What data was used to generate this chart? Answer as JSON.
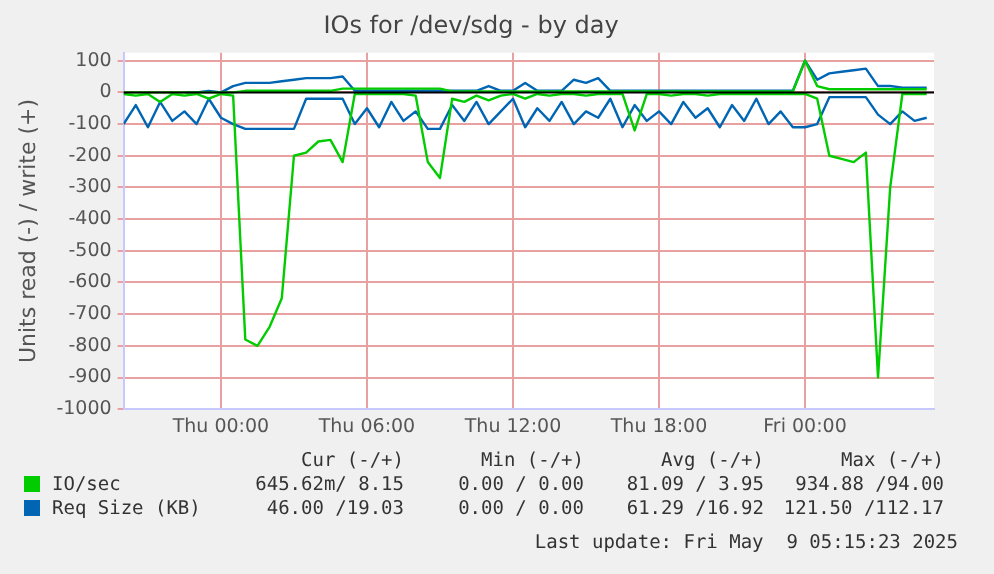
{
  "chart_data": {
    "type": "line",
    "title": "IOs for /dev/sdg - by day",
    "ylabel": "Units read (-) / write (+)",
    "x": [
      "2025-05-07T20:00",
      "2025-05-07T20:30",
      "2025-05-07T21:00",
      "2025-05-07T21:30",
      "2025-05-07T22:00",
      "2025-05-07T22:30",
      "2025-05-07T23:00",
      "2025-05-07T23:30",
      "2025-05-08T00:00",
      "2025-05-08T00:30",
      "2025-05-08T01:00",
      "2025-05-08T01:30",
      "2025-05-08T02:00",
      "2025-05-08T02:30",
      "2025-05-08T03:00",
      "2025-05-08T03:30",
      "2025-05-08T04:00",
      "2025-05-08T04:30",
      "2025-05-08T05:00",
      "2025-05-08T05:30",
      "2025-05-08T06:00",
      "2025-05-08T06:30",
      "2025-05-08T07:00",
      "2025-05-08T07:30",
      "2025-05-08T08:00",
      "2025-05-08T08:30",
      "2025-05-08T09:00",
      "2025-05-08T09:30",
      "2025-05-08T10:00",
      "2025-05-08T10:30",
      "2025-05-08T11:00",
      "2025-05-08T11:30",
      "2025-05-08T12:00",
      "2025-05-08T12:30",
      "2025-05-08T13:00",
      "2025-05-08T13:30",
      "2025-05-08T14:00",
      "2025-05-08T14:30",
      "2025-05-08T15:00",
      "2025-05-08T15:30",
      "2025-05-08T16:00",
      "2025-05-08T16:30",
      "2025-05-08T17:00",
      "2025-05-08T17:30",
      "2025-05-08T18:00",
      "2025-05-08T18:30",
      "2025-05-08T19:00",
      "2025-05-08T19:30",
      "2025-05-08T20:00",
      "2025-05-08T20:30",
      "2025-05-08T21:00",
      "2025-05-08T21:30",
      "2025-05-08T22:00",
      "2025-05-08T22:30",
      "2025-05-08T23:00",
      "2025-05-08T23:30",
      "2025-05-09T00:00",
      "2025-05-09T00:30",
      "2025-05-09T01:00",
      "2025-05-09T01:30",
      "2025-05-09T02:00",
      "2025-05-09T02:30",
      "2025-05-09T03:00",
      "2025-05-09T03:30",
      "2025-05-09T04:00",
      "2025-05-09T04:30",
      "2025-05-09T05:00"
    ],
    "series": [
      {
        "name": "IO/sec",
        "color": "#00cc00",
        "values": [
          -5,
          -10,
          -5,
          -30,
          -5,
          -10,
          -5,
          -20,
          -5,
          -10,
          -780,
          -800,
          -740,
          -650,
          -200,
          -190,
          -155,
          -150,
          -220,
          -5,
          -5,
          -5,
          -5,
          -5,
          -10,
          -220,
          -270,
          -20,
          -30,
          -10,
          -25,
          -10,
          -5,
          -20,
          -5,
          -10,
          -5,
          -5,
          -10,
          -5,
          -5,
          -5,
          -120,
          -5,
          -5,
          -10,
          -5,
          -5,
          -10,
          -5,
          -5,
          -5,
          -5,
          -5,
          -5,
          -5,
          -5,
          -20,
          -200,
          -210,
          -220,
          -190,
          -900,
          -300,
          -5,
          -5,
          -5
        ]
      },
      {
        "color": "#00cc00",
        "values": [
          0,
          0,
          0,
          0,
          0,
          0,
          0,
          0,
          0,
          0,
          5,
          5,
          5,
          5,
          5,
          5,
          5,
          5,
          12,
          12,
          12,
          12,
          12,
          12,
          12,
          12,
          12,
          3,
          3,
          3,
          3,
          3,
          3,
          3,
          3,
          3,
          3,
          3,
          3,
          3,
          3,
          3,
          3,
          3,
          3,
          3,
          3,
          3,
          3,
          3,
          3,
          3,
          3,
          3,
          3,
          3,
          100,
          20,
          10,
          10,
          10,
          10,
          10,
          10,
          10,
          10,
          10
        ]
      },
      {
        "name": "Req Size (KB)",
        "color": "#0066b3",
        "values": [
          -100,
          -40,
          -110,
          -30,
          -90,
          -60,
          -100,
          -20,
          -80,
          -100,
          -115,
          -115,
          -115,
          -115,
          -115,
          -20,
          -20,
          -20,
          -20,
          -100,
          -50,
          -110,
          -30,
          -90,
          -60,
          -115,
          -115,
          -40,
          -90,
          -30,
          -100,
          -60,
          -20,
          -110,
          -50,
          -90,
          -30,
          -100,
          -60,
          -80,
          -20,
          -110,
          -40,
          -90,
          -60,
          -100,
          -30,
          -80,
          -50,
          -110,
          -40,
          -90,
          -20,
          -100,
          -60,
          -110,
          -110,
          -100,
          -15,
          -15,
          -15,
          -15,
          -70,
          -100,
          -60,
          -90,
          -80
        ]
      },
      {
        "color": "#0066b3",
        "values": [
          null,
          null,
          null,
          null,
          null,
          0,
          0,
          5,
          0,
          20,
          30,
          30,
          30,
          35,
          40,
          45,
          45,
          45,
          50,
          5,
          5,
          5,
          5,
          5,
          5,
          5,
          5,
          5,
          5,
          5,
          20,
          5,
          5,
          30,
          5,
          5,
          5,
          40,
          30,
          45,
          5,
          5,
          5,
          5,
          5,
          5,
          5,
          5,
          5,
          5,
          5,
          5,
          5,
          5,
          5,
          5,
          100,
          40,
          60,
          65,
          70,
          75,
          20,
          20,
          15,
          15,
          15
        ]
      }
    ],
    "xlim": [
      "2025-05-07T20:00",
      "2025-05-09T05:18"
    ],
    "xticks": [
      {
        "value": "2025-05-08T00:00",
        "label": "Thu 00:00"
      },
      {
        "value": "2025-05-08T06:00",
        "label": "Thu 06:00"
      },
      {
        "value": "2025-05-08T12:00",
        "label": "Thu 12:00"
      },
      {
        "value": "2025-05-08T18:00",
        "label": "Thu 18:00"
      },
      {
        "value": "2025-05-09T00:00",
        "label": "Fri 00:00"
      }
    ],
    "ylim": [
      -1000,
      125
    ],
    "yticks": [
      -1000,
      -900,
      -800,
      -700,
      -600,
      -500,
      -400,
      -300,
      -200,
      -100,
      0,
      100
    ],
    "grid": true,
    "legend": "bottom",
    "marker": "none",
    "line_style": "solid",
    "ref_lines": [
      {
        "axis": "y",
        "value": 0,
        "color": "#000000"
      }
    ],
    "annotations": [
      "Cur (-/+)",
      "Min (-/+)",
      "Avg (-/+)",
      "Max (-/+)",
      "645.62m/ 8.15",
      "0.00 / 0.00",
      "81.09 / 3.95",
      "934.88 /94.00",
      "46.00 /19.03",
      "0.00 / 0.00",
      "61.29 /16.92",
      "121.50 /112.17",
      "Last update: Fri May  9 05:15:23 2025"
    ]
  }
}
